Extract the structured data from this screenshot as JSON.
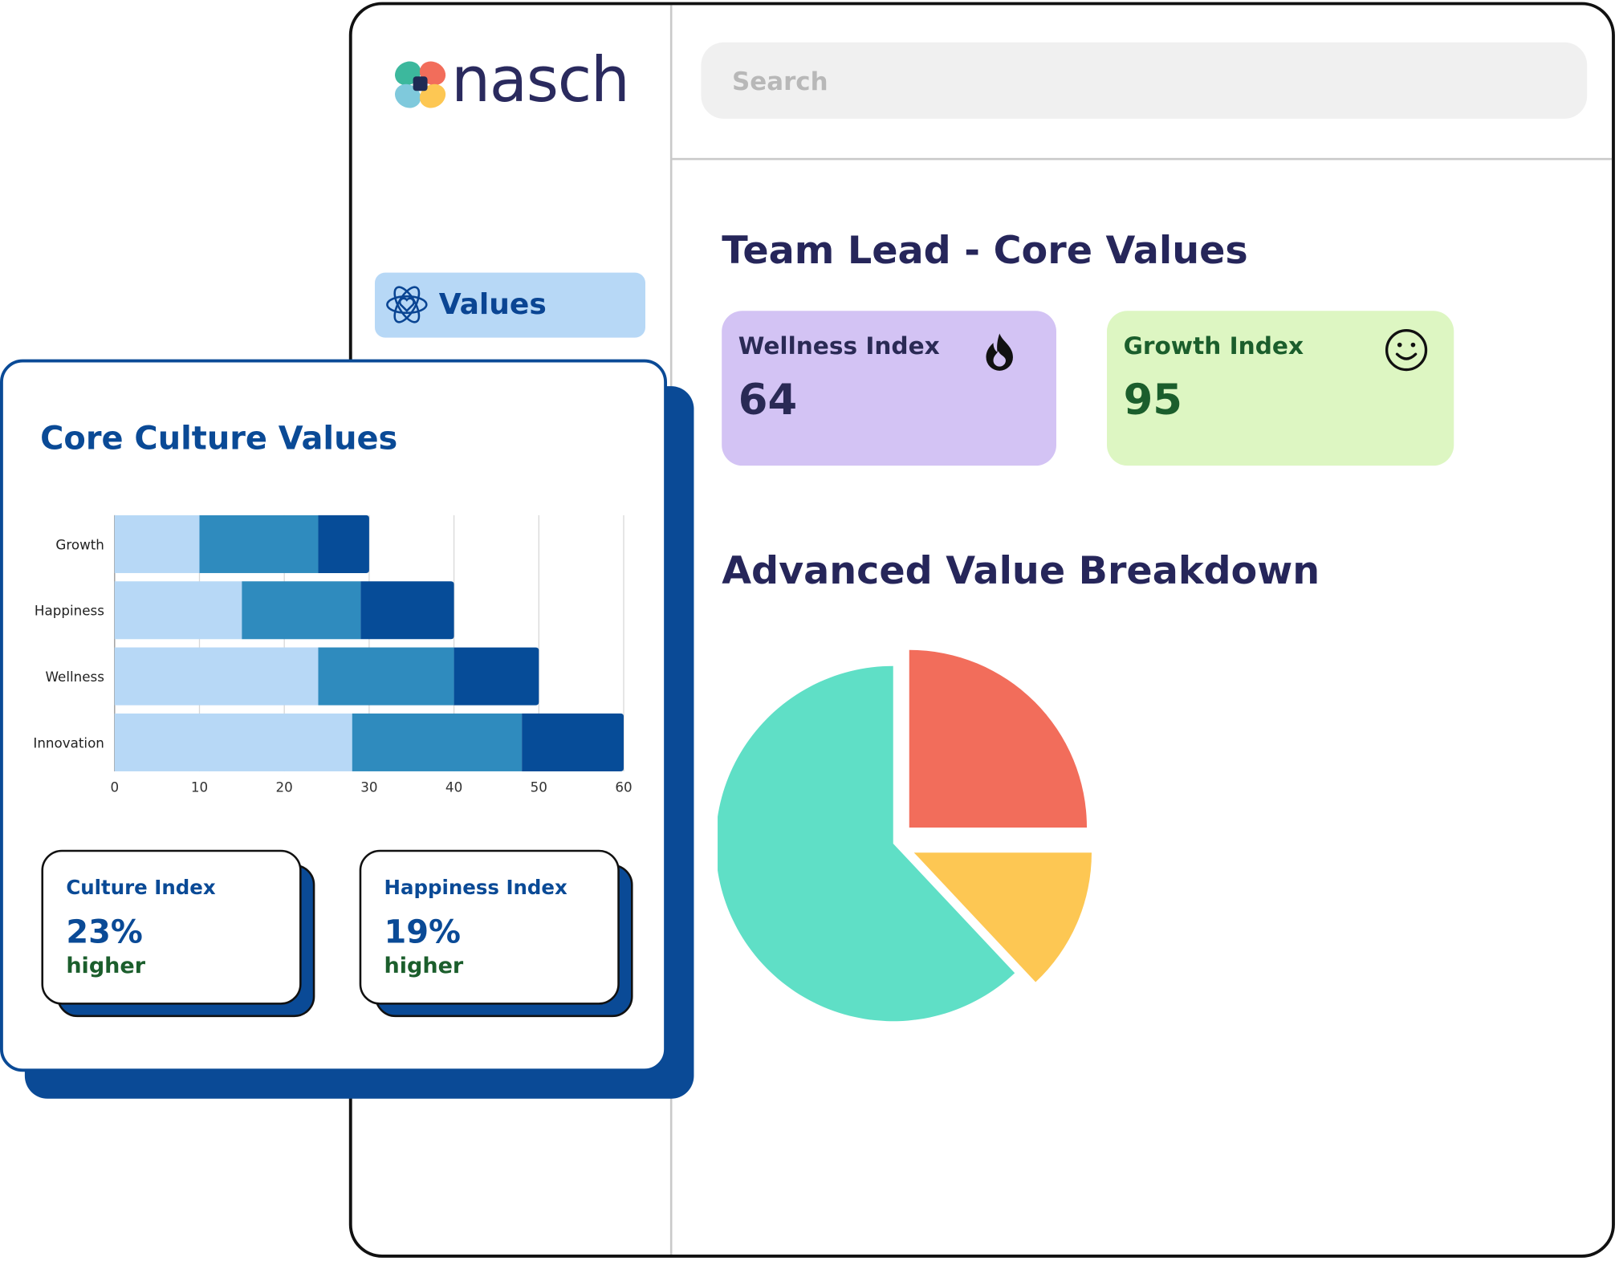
{
  "brand": {
    "name": "nasch"
  },
  "search": {
    "placeholder": "Search"
  },
  "sidebar": {
    "items": [
      {
        "label": "Values",
        "icon": "atom-heart-icon",
        "active": true
      }
    ]
  },
  "main": {
    "title": "Team Lead - Core Values",
    "cards": [
      {
        "label": "Wellness Index",
        "value": "64",
        "icon": "flame-icon",
        "color": "#d3c3f4"
      },
      {
        "label": "Growth Index",
        "value": "95",
        "icon": "smiley-icon",
        "color": "#ddf6c2"
      }
    ],
    "breakdown_title": "Advanced Value Breakdown"
  },
  "overlay": {
    "title": "Core Culture Values",
    "stats": [
      {
        "label": "Culture Index",
        "value": "23%",
        "sub": "higher"
      },
      {
        "label": "Happiness Index",
        "value": "19%",
        "sub": "higher"
      }
    ]
  },
  "chart_data": [
    {
      "type": "bar",
      "orientation": "horizontal",
      "stacked": true,
      "categories": [
        "Growth",
        "Happiness",
        "Wellness",
        "Innovation"
      ],
      "series": [
        {
          "values": [
            10,
            15,
            24,
            28
          ],
          "color": "#b7d8f6"
        },
        {
          "values": [
            14,
            14,
            16,
            20
          ],
          "color": "#2f8bbe"
        },
        {
          "values": [
            6,
            11,
            10,
            12
          ],
          "color": "#064c98"
        }
      ],
      "xlim": [
        0,
        60
      ],
      "xticks": [
        0,
        10,
        20,
        30,
        40,
        50,
        60
      ],
      "grid": true
    },
    {
      "type": "pie",
      "slices": [
        {
          "value": 25,
          "color": "#f26d5b",
          "exploded": true
        },
        {
          "value": 13,
          "color": "#fdc753",
          "exploded": true
        },
        {
          "value": 62,
          "color": "#5fdfc6",
          "exploded": false
        }
      ]
    }
  ]
}
